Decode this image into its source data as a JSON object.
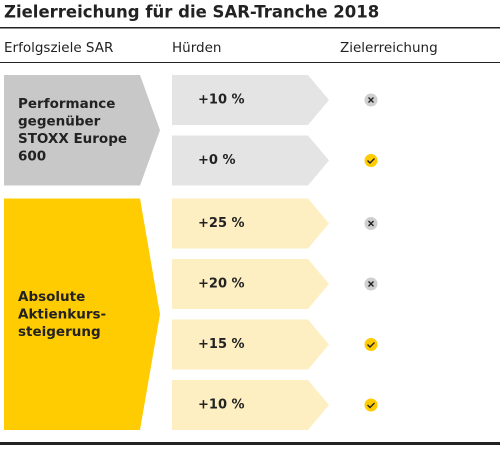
{
  "title": "Zielerreichung für die SAR-Tranche 2018",
  "headers": [
    "Erfolgsziele SAR",
    "Hürden",
    "Zielerreichung"
  ],
  "groups": [
    {
      "label": [
        "Performance",
        "gegenüber",
        "STOXX Europe",
        "600"
      ],
      "color": "#c8c8c8",
      "row_color": "#e4e4e4",
      "rows": [
        {
          "hurdle": "+10 %",
          "achieved": false
        },
        {
          "hurdle": "+0 %",
          "achieved": true
        }
      ]
    },
    {
      "label": [
        "Absolute",
        "Aktienkurs-",
        "steigerung"
      ],
      "color": "#fecc00",
      "row_color": "#fdefc2",
      "rows": [
        {
          "hurdle": "+25 %",
          "achieved": false
        },
        {
          "hurdle": "+20 %",
          "achieved": false
        },
        {
          "hurdle": "+15 %",
          "achieved": true
        },
        {
          "hurdle": "+10 %",
          "achieved": true
        }
      ]
    }
  ]
}
